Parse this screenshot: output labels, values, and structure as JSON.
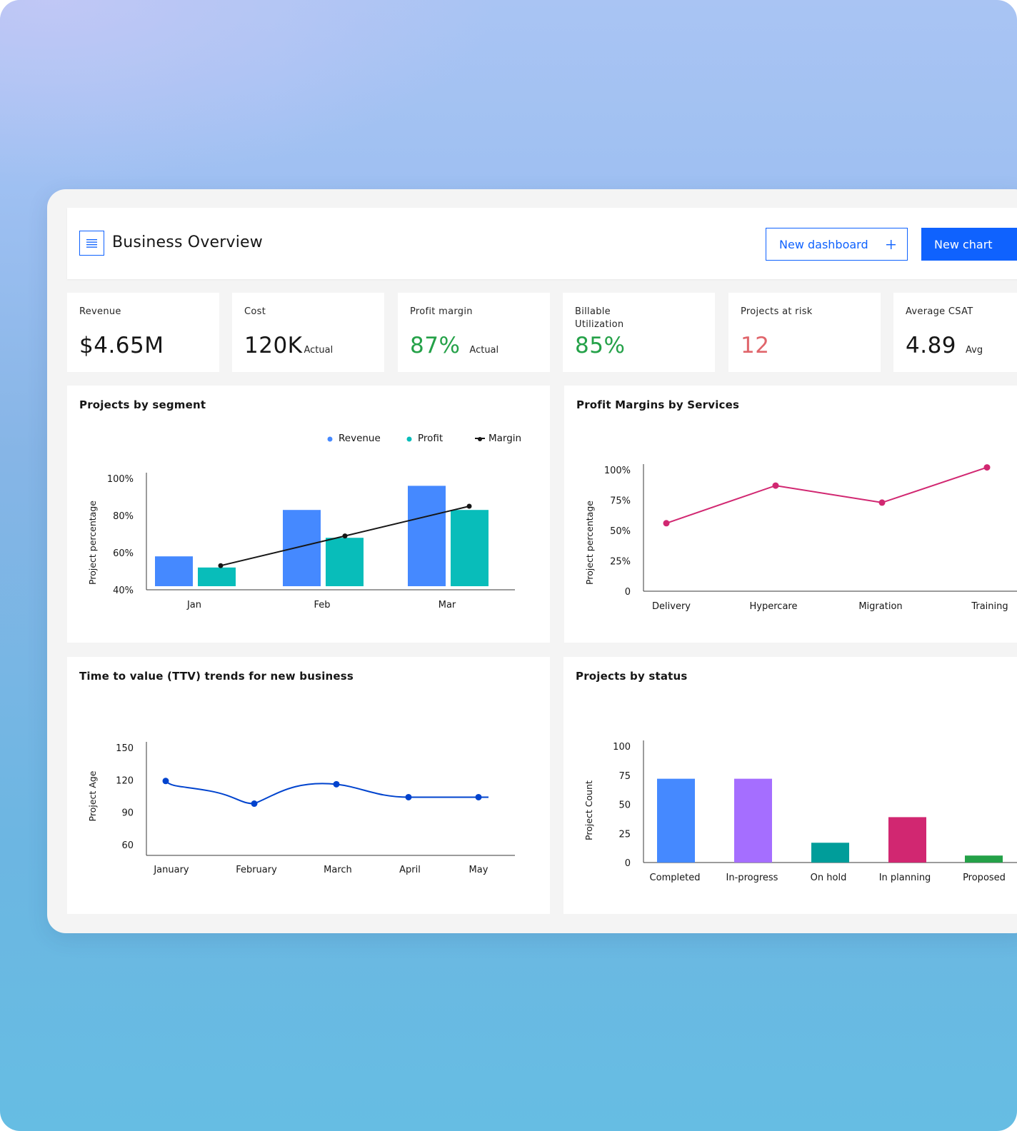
{
  "header": {
    "title": "Business Overview",
    "new_dashboard_label": "New dashboard",
    "new_dashboard_icon": "plus-icon",
    "new_chart_label": "New chart",
    "menu_icon": "menu-icon"
  },
  "kpis": [
    {
      "label": "Revenue",
      "value": "$4.65M",
      "unit": "",
      "color": "#161616"
    },
    {
      "label": "Cost",
      "value": "120K",
      "unit": "Actual",
      "color": "#161616"
    },
    {
      "label": "Profit margin",
      "value": "87%",
      "unit": "Actual",
      "color": "#24a148"
    },
    {
      "label": "Billable Utilization",
      "value": "85%",
      "unit": "",
      "color": "#24a148"
    },
    {
      "label": "Projects at risk",
      "value": "12",
      "unit": "",
      "color": "#e0656b"
    },
    {
      "label": "Average CSAT",
      "value": "4.89",
      "unit": "Avg",
      "color": "#161616"
    }
  ],
  "colors": {
    "accent": "#0f62fe",
    "revenue": "#4589ff",
    "profit": "#08bdba",
    "margin": "#161616",
    "services_line": "#d12771",
    "ttv_line": "#0043ce",
    "status_completed": "#4589ff",
    "status_inprogress": "#a56eff",
    "status_onhold": "#009d9a",
    "status_inplanning": "#d12771",
    "status_proposed": "#24a148"
  },
  "chart_data": [
    {
      "id": "segment",
      "type": "bar",
      "title": "Projects by segment",
      "ylabel": "Project percentage",
      "xlabel": "",
      "categories": [
        "Jan",
        "Feb",
        "Mar"
      ],
      "ylim": [
        40,
        100
      ],
      "yticks": [
        40,
        60,
        80,
        100
      ],
      "ytick_labels": [
        "40%",
        "60%",
        "80%",
        "100%"
      ],
      "legend": [
        "Revenue",
        "Profit",
        "Margin"
      ],
      "legend_position": "top-right",
      "series": [
        {
          "name": "Revenue",
          "type": "bar",
          "values": [
            58,
            83,
            96
          ]
        },
        {
          "name": "Profit",
          "type": "bar",
          "values": [
            52,
            68,
            83
          ]
        },
        {
          "name": "Margin",
          "type": "line",
          "values": [
            53,
            69,
            85
          ]
        }
      ]
    },
    {
      "id": "services",
      "type": "line",
      "title": "Profit Margins by Services",
      "ylabel": "Project percentage",
      "xlabel": "",
      "categories": [
        "Delivery",
        "Hypercare",
        "Migration",
        "Training"
      ],
      "ylim": [
        0,
        100
      ],
      "yticks": [
        0,
        25,
        50,
        75,
        100
      ],
      "ytick_labels": [
        "0",
        "25%",
        "50%",
        "75%",
        "100%"
      ],
      "series": [
        {
          "name": "Profit margin",
          "values": [
            56,
            87,
            73,
            102
          ]
        }
      ]
    },
    {
      "id": "ttv",
      "type": "line",
      "title": "Time to value (TTV) trends for new business",
      "ylabel": "Project Age",
      "xlabel": "",
      "categories": [
        "January",
        "February",
        "March",
        "April",
        "May"
      ],
      "ylim": [
        50,
        150
      ],
      "yticks": [
        60,
        90,
        120,
        150
      ],
      "ytick_labels": [
        "60",
        "90",
        "120",
        "150"
      ],
      "series": [
        {
          "name": "Project Age",
          "values": [
            119,
            98,
            116,
            104,
            104
          ]
        }
      ]
    },
    {
      "id": "status",
      "type": "bar",
      "title": "Projects by status",
      "ylabel": "Project Count",
      "xlabel": "",
      "categories": [
        "Completed",
        "In-progress",
        "On hold",
        "In planning",
        "Proposed"
      ],
      "ylim": [
        0,
        100
      ],
      "yticks": [
        0,
        25,
        50,
        75,
        100
      ],
      "ytick_labels": [
        "0",
        "25",
        "50",
        "75",
        "100"
      ],
      "series": [
        {
          "name": "Projects",
          "values": [
            72,
            72,
            17,
            39,
            6
          ]
        }
      ]
    }
  ]
}
